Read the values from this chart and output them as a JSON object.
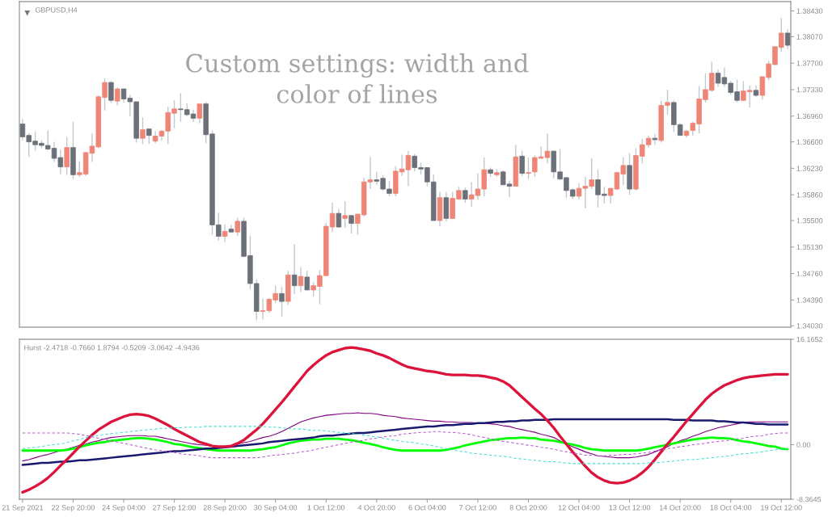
{
  "chart_data": [
    {
      "type": "candlestick",
      "title": "GBPUSD,H4",
      "annotations": [
        "Custom settings: width and\ncolor of lines"
      ],
      "categories": [
        null,
        null,
        null,
        null,
        null,
        null,
        null,
        null,
        null,
        null,
        null,
        null,
        null,
        null,
        null,
        null,
        null,
        null,
        null,
        null,
        null,
        null,
        null,
        null,
        null,
        null,
        null,
        null,
        null,
        null,
        null,
        null,
        null,
        null,
        null,
        null,
        null,
        null,
        null,
        null,
        null,
        null,
        null,
        null,
        null,
        null,
        null,
        null,
        null,
        null,
        null,
        null,
        null,
        null,
        null,
        null,
        null,
        null,
        null,
        null,
        null,
        null,
        null,
        null,
        null,
        null,
        null,
        null,
        null,
        null,
        null,
        null,
        null,
        null,
        null,
        null,
        null,
        null,
        null,
        null,
        null,
        null,
        null,
        null,
        null,
        null,
        null,
        null,
        null,
        null,
        null,
        null,
        null,
        null,
        null,
        null,
        null,
        null,
        null,
        null,
        null,
        null,
        null,
        null,
        null,
        null,
        null,
        null,
        null,
        null,
        null,
        null,
        null,
        null,
        null,
        null,
        null,
        null,
        null,
        null,
        null,
        null
      ],
      "ohlc": [
        [
          1.3685,
          1.3692,
          1.3662,
          1.3667
        ],
        [
          1.3669,
          1.3672,
          1.3639,
          1.366
        ],
        [
          1.3661,
          1.3674,
          1.3648,
          1.3656
        ],
        [
          1.3658,
          1.3662,
          1.3651,
          1.3655
        ],
        [
          1.3655,
          1.3676,
          1.3648,
          1.365
        ],
        [
          1.3651,
          1.366,
          1.3632,
          1.3637
        ],
        [
          1.3638,
          1.3649,
          1.3615,
          1.3625
        ],
        [
          1.3625,
          1.3667,
          1.3614,
          1.3652
        ],
        [
          1.3652,
          1.3688,
          1.3608,
          1.3614
        ],
        [
          1.3614,
          1.3633,
          1.3611,
          1.3617
        ],
        [
          1.3615,
          1.3646,
          1.3612,
          1.3645
        ],
        [
          1.3644,
          1.3672,
          1.3632,
          1.3654
        ],
        [
          1.3653,
          1.3725,
          1.3651,
          1.3723
        ],
        [
          1.3722,
          1.3749,
          1.3704,
          1.3743
        ],
        [
          1.3743,
          1.3745,
          1.3715,
          1.3718
        ],
        [
          1.3717,
          1.3736,
          1.3711,
          1.3734
        ],
        [
          1.3734,
          1.3734,
          1.3715,
          1.372
        ],
        [
          1.3721,
          1.3726,
          1.3696,
          1.3716
        ],
        [
          1.3716,
          1.3716,
          1.3659,
          1.3665
        ],
        [
          1.3665,
          1.3694,
          1.3657,
          1.3677
        ],
        [
          1.3678,
          1.3678,
          1.3657,
          1.3669
        ],
        [
          1.3661,
          1.3675,
          1.3658,
          1.3668
        ],
        [
          1.3668,
          1.3677,
          1.3662,
          1.3675
        ],
        [
          1.3675,
          1.3709,
          1.3657,
          1.3701
        ],
        [
          1.37,
          1.3718,
          1.3679,
          1.3706
        ],
        [
          1.3706,
          1.3728,
          1.3688,
          1.3705
        ],
        [
          1.3705,
          1.3714,
          1.3696,
          1.3698
        ],
        [
          1.3699,
          1.3705,
          1.3688,
          1.3693
        ],
        [
          1.3693,
          1.3713,
          1.3686,
          1.3713
        ],
        [
          1.3713,
          1.3716,
          1.3658,
          1.367
        ],
        [
          1.3671,
          1.3676,
          1.353,
          1.3544
        ],
        [
          1.3544,
          1.3561,
          1.3522,
          1.3528
        ],
        [
          1.3528,
          1.3545,
          1.352,
          1.3535
        ],
        [
          1.3538,
          1.3544,
          1.3533,
          1.3534
        ],
        [
          1.3534,
          1.3554,
          1.3528,
          1.3549
        ],
        [
          1.3549,
          1.3554,
          1.3499,
          1.35
        ],
        [
          1.3501,
          1.3529,
          1.3454,
          1.3462
        ],
        [
          1.3462,
          1.3468,
          1.3411,
          1.3423
        ],
        [
          1.3423,
          1.3441,
          1.3412,
          1.3424
        ],
        [
          1.3424,
          1.3442,
          1.3421,
          1.344
        ],
        [
          1.3439,
          1.3459,
          1.3435,
          1.3448
        ],
        [
          1.3448,
          1.3457,
          1.3416,
          1.3437
        ],
        [
          1.3437,
          1.348,
          1.3432,
          1.3474
        ],
        [
          1.3474,
          1.3517,
          1.3447,
          1.3459
        ],
        [
          1.3459,
          1.3485,
          1.345,
          1.3472
        ],
        [
          1.3471,
          1.348,
          1.3453,
          1.3453
        ],
        [
          1.3453,
          1.3464,
          1.3444,
          1.3459
        ],
        [
          1.3458,
          1.3481,
          1.3433,
          1.3473
        ],
        [
          1.3473,
          1.3547,
          1.3473,
          1.3542
        ],
        [
          1.3541,
          1.3575,
          1.3534,
          1.356
        ],
        [
          1.356,
          1.3566,
          1.354,
          1.3541
        ],
        [
          1.3553,
          1.3577,
          1.354,
          1.3557
        ],
        [
          1.3557,
          1.3557,
          1.3532,
          1.3546
        ],
        [
          1.3546,
          1.3559,
          1.353,
          1.3559
        ],
        [
          1.3558,
          1.361,
          1.3556,
          1.3604
        ],
        [
          1.3604,
          1.3639,
          1.3594,
          1.3607
        ],
        [
          1.3607,
          1.3618,
          1.36,
          1.3605
        ],
        [
          1.3609,
          1.3613,
          1.3592,
          1.3594
        ],
        [
          1.3594,
          1.3605,
          1.3584,
          1.3588
        ],
        [
          1.3588,
          1.3626,
          1.3584,
          1.3619
        ],
        [
          1.3618,
          1.3642,
          1.3612,
          1.3622
        ],
        [
          1.3621,
          1.3647,
          1.3598,
          1.3641
        ],
        [
          1.364,
          1.3643,
          1.3619,
          1.3624
        ],
        [
          1.3624,
          1.3631,
          1.3614,
          1.3622
        ],
        [
          1.3624,
          1.3624,
          1.3598,
          1.3604
        ],
        [
          1.3604,
          1.3614,
          1.355,
          1.355
        ],
        [
          1.355,
          1.359,
          1.3542,
          1.3582
        ],
        [
          1.3582,
          1.359,
          1.3549,
          1.3553
        ],
        [
          1.3553,
          1.359,
          1.3553,
          1.3581
        ],
        [
          1.358,
          1.3597,
          1.3579,
          1.3592
        ],
        [
          1.3592,
          1.3596,
          1.3575,
          1.358
        ],
        [
          1.358,
          1.3604,
          1.3569,
          1.3586
        ],
        [
          1.3585,
          1.3616,
          1.3579,
          1.3594
        ],
        [
          1.3594,
          1.3638,
          1.3584,
          1.3621
        ],
        [
          1.3621,
          1.3624,
          1.3611,
          1.3616
        ],
        [
          1.3614,
          1.3622,
          1.3611,
          1.3617
        ],
        [
          1.3618,
          1.362,
          1.36,
          1.36
        ],
        [
          1.3601,
          1.3606,
          1.3583,
          1.3598
        ],
        [
          1.3598,
          1.3656,
          1.3598,
          1.3639
        ],
        [
          1.364,
          1.3647,
          1.3612,
          1.3616
        ],
        [
          1.3616,
          1.3638,
          1.3608,
          1.3617
        ],
        [
          1.3618,
          1.3641,
          1.3611,
          1.3638
        ],
        [
          1.3637,
          1.3654,
          1.3637,
          1.3639
        ],
        [
          1.3638,
          1.3672,
          1.363,
          1.3647
        ],
        [
          1.3647,
          1.3648,
          1.3609,
          1.3618
        ],
        [
          1.3618,
          1.365,
          1.3607,
          1.3608
        ],
        [
          1.361,
          1.361,
          1.3582,
          1.3592
        ],
        [
          1.3593,
          1.3595,
          1.358,
          1.3584
        ],
        [
          1.3584,
          1.3602,
          1.3579,
          1.3595
        ],
        [
          1.3595,
          1.3611,
          1.3567,
          1.3598
        ],
        [
          1.3598,
          1.3637,
          1.3594,
          1.3607
        ],
        [
          1.3607,
          1.3621,
          1.3568,
          1.3586
        ],
        [
          1.3587,
          1.3597,
          1.3574,
          1.3585
        ],
        [
          1.3585,
          1.3595,
          1.3574,
          1.3595
        ],
        [
          1.3594,
          1.3618,
          1.3593,
          1.3617
        ],
        [
          1.3615,
          1.3638,
          1.36,
          1.3627
        ],
        [
          1.3627,
          1.3644,
          1.3586,
          1.3594
        ],
        [
          1.3594,
          1.3651,
          1.3592,
          1.3641
        ],
        [
          1.364,
          1.3664,
          1.363,
          1.3656
        ],
        [
          1.3656,
          1.3669,
          1.3652,
          1.3665
        ],
        [
          1.3665,
          1.3671,
          1.3656,
          1.3663
        ],
        [
          1.3662,
          1.3717,
          1.3659,
          1.3711
        ],
        [
          1.3711,
          1.3733,
          1.3698,
          1.3715
        ],
        [
          1.3715,
          1.3718,
          1.3674,
          1.3684
        ],
        [
          1.3684,
          1.3686,
          1.3669,
          1.3669
        ],
        [
          1.3669,
          1.3677,
          1.3666,
          1.3675
        ],
        [
          1.3676,
          1.3688,
          1.3669,
          1.3686
        ],
        [
          1.3685,
          1.3738,
          1.3672,
          1.372
        ],
        [
          1.3719,
          1.3756,
          1.3715,
          1.3733
        ],
        [
          1.3732,
          1.3772,
          1.373,
          1.3756
        ],
        [
          1.3756,
          1.3761,
          1.3737,
          1.3742
        ],
        [
          1.375,
          1.3764,
          1.3737,
          1.3741
        ],
        [
          1.3742,
          1.3745,
          1.3726,
          1.3729
        ],
        [
          1.373,
          1.3747,
          1.3715,
          1.3718
        ],
        [
          1.3718,
          1.3745,
          1.3717,
          1.3731
        ],
        [
          1.373,
          1.3739,
          1.3708,
          1.3732
        ],
        [
          1.3732,
          1.3739,
          1.3723,
          1.3725
        ],
        [
          1.3725,
          1.3751,
          1.3719,
          1.3751
        ],
        [
          1.375,
          1.3773,
          1.3746,
          1.3769
        ],
        [
          1.3768,
          1.3793,
          1.3767,
          1.3793
        ],
        [
          1.3792,
          1.3833,
          1.3786,
          1.3812
        ],
        [
          1.3812,
          1.3817,
          1.379,
          1.3795
        ]
      ],
      "colors": [
        "#6c7079",
        "#6c7079",
        "#6c7079",
        "#6c7079",
        "#6c7079",
        "#6c7079",
        "#6c7079",
        "#ee8577",
        "#6c7079",
        "#ee8577",
        "#ee8577",
        "#ee8577",
        "#ee8577",
        "#ee8577",
        "#6c7079",
        "#ee8577",
        "#6c7079",
        "#6c7079",
        "#6c7079",
        "#ee8577",
        "#6c7079",
        "#ee8577",
        "#ee8577",
        "#ee8577",
        "#ee8577",
        "#6c7079",
        "#6c7079",
        "#6c7079",
        "#ee8577",
        "#6c7079",
        "#6c7079",
        "#6c7079",
        "#ee8577",
        "#6c7079",
        "#ee8577",
        "#6c7079",
        "#6c7079",
        "#6c7079",
        "#ee8577",
        "#ee8577",
        "#ee8577",
        "#6c7079",
        "#ee8577",
        "#6c7079",
        "#ee8577",
        "#6c7079",
        "#ee8577",
        "#ee8577",
        "#ee8577",
        "#ee8577",
        "#6c7079",
        "#ee8577",
        "#6c7079",
        "#ee8577",
        "#ee8577",
        "#ee8577",
        "#6c7079",
        "#6c7079",
        "#6c7079",
        "#ee8577",
        "#ee8577",
        "#ee8577",
        "#6c7079",
        "#6c7079",
        "#6c7079",
        "#6c7079",
        "#ee8577",
        "#6c7079",
        "#ee8577",
        "#ee8577",
        "#6c7079",
        "#ee8577",
        "#ee8577",
        "#ee8577",
        "#6c7079",
        "#ee8577",
        "#6c7079",
        "#6c7079",
        "#ee8577",
        "#6c7079",
        "#ee8577",
        "#ee8577",
        "#ee8577",
        "#ee8577",
        "#6c7079",
        "#6c7079",
        "#6c7079",
        "#6c7079",
        "#ee8577",
        "#ee8577",
        "#ee8577",
        "#6c7079",
        "#6c7079",
        "#ee8577",
        "#ee8577",
        "#ee8577",
        "#6c7079",
        "#ee8577",
        "#ee8577",
        "#ee8577",
        "#6c7079",
        "#ee8577",
        "#ee8577",
        "#6c7079",
        "#6c7079",
        "#ee8577",
        "#ee8577",
        "#ee8577",
        "#ee8577",
        "#ee8577",
        "#6c7079",
        "#6c7079",
        "#6c7079",
        "#6c7079",
        "#ee8577",
        "#ee8577",
        "#6c7079",
        "#ee8577",
        "#ee8577",
        "#ee8577",
        "#ee8577",
        "#6c7079"
      ],
      "ylim": [
        1.3401,
        1.3856
      ],
      "yticks": [
        {
          "value": 1.3843,
          "label": "1.38430"
        },
        {
          "value": 1.3807,
          "label": "1.38070"
        },
        {
          "value": 1.377,
          "label": "1.37700"
        },
        {
          "value": 1.3733,
          "label": "1.37330"
        },
        {
          "value": 1.3696,
          "label": "1.36960"
        },
        {
          "value": 1.366,
          "label": "1.36600"
        },
        {
          "value": 1.3623,
          "label": "1.36230"
        },
        {
          "value": 1.3586,
          "label": "1.35860"
        },
        {
          "value": 1.355,
          "label": "1.35500"
        },
        {
          "value": 1.3513,
          "label": "1.35130"
        },
        {
          "value": 1.3476,
          "label": "1.34760"
        },
        {
          "value": 1.3439,
          "label": "1.34390"
        },
        {
          "value": 1.3403,
          "label": "1.34030"
        }
      ],
      "tick_labels": "y"
    },
    {
      "type": "line",
      "title": "Hurst -2.4718 -0.7660 1.8794 -0.5209 -3.0642 -4.9436",
      "categories": [
        "21 Sep 2021",
        null,
        null,
        null,
        null,
        null,
        null,
        null,
        "22 Sep 20:00",
        null,
        null,
        null,
        null,
        null,
        null,
        null,
        "24 Sep 04:00",
        null,
        null,
        null,
        null,
        null,
        null,
        null,
        "27 Sep 12:00",
        null,
        null,
        null,
        null,
        null,
        null,
        null,
        "28 Sep 20:00",
        null,
        null,
        null,
        null,
        null,
        null,
        null,
        "30 Sep 04:00",
        null,
        null,
        null,
        null,
        null,
        null,
        null,
        "1 Oct 12:00",
        null,
        null,
        null,
        null,
        null,
        null,
        null,
        "4 Oct 20:00",
        null,
        null,
        null,
        null,
        null,
        null,
        null,
        "6 Oct 04:00",
        null,
        null,
        null,
        null,
        null,
        null,
        null,
        "7 Oct 12:00",
        null,
        null,
        null,
        null,
        null,
        null,
        null,
        "8 Oct 20:00",
        null,
        null,
        null,
        null,
        null,
        null,
        null,
        "12 Oct 04:00",
        null,
        null,
        null,
        null,
        null,
        null,
        null,
        "13 Oct 12:00",
        null,
        null,
        null,
        null,
        null,
        null,
        null,
        "14 Oct 20:00",
        null,
        null,
        null,
        null,
        null,
        null,
        null,
        "18 Oct 04:00",
        null,
        null,
        null,
        null,
        null,
        null,
        null,
        "19 Oct 12:00",
        null
      ],
      "series": [
        {
          "color": "#dc143c",
          "values": [
            -7.3,
            -6.9,
            -6.4,
            -5.8,
            -5.1,
            -4.2,
            -3.2,
            -2.3,
            -1.3,
            -0.3,
            0.6,
            1.5,
            2.3,
            2.9,
            3.5,
            3.9,
            4.3,
            4.6,
            4.7,
            4.6,
            4.4,
            4.0,
            3.5,
            3.0,
            2.4,
            1.9,
            1.4,
            0.9,
            0.4,
            0.1,
            -0.2,
            -0.3,
            -0.3,
            -0.2,
            0.2,
            0.7,
            1.5,
            2.3,
            3.2,
            4.3,
            5.4,
            6.5,
            7.7,
            8.9,
            10.1,
            11.3,
            12.2,
            13.0,
            13.7,
            14.2,
            14.5,
            14.8,
            14.9,
            14.8,
            14.6,
            14.4,
            14.0,
            13.7,
            13.3,
            12.8,
            12.3,
            11.9,
            11.7,
            11.5,
            11.3,
            11.2,
            11.0,
            10.8,
            10.7,
            10.7,
            10.7,
            10.6,
            10.6,
            10.5,
            10.3,
            10.1,
            9.7,
            9.1,
            8.2,
            7.3,
            6.4,
            5.5,
            4.7,
            3.7,
            2.6,
            1.3,
            0.1,
            -1.1,
            -2.2,
            -3.3,
            -4.3,
            -5.0,
            -5.5,
            -5.8,
            -5.9,
            -5.8,
            -5.5,
            -5.0,
            -4.3,
            -3.4,
            -2.3,
            -1.1,
            0.1,
            1.2,
            2.4,
            3.6,
            4.7,
            5.8,
            6.9,
            7.8,
            8.5,
            9.1,
            9.5,
            9.9,
            10.2,
            10.4,
            10.5,
            10.6,
            10.7,
            10.8,
            10.8,
            10.8
          ]
        },
        {
          "color": "#191970",
          "values": [
            -3.1,
            -3.0,
            -2.9,
            -2.8,
            -2.8,
            -2.7,
            -2.6,
            -2.6,
            -2.5,
            -2.4,
            -2.4,
            -2.3,
            -2.2,
            -2.1,
            -2.0,
            -1.9,
            -1.8,
            -1.7,
            -1.6,
            -1.5,
            -1.4,
            -1.3,
            -1.2,
            -1.1,
            -1.0,
            -1.0,
            -0.9,
            -0.8,
            -0.7,
            -0.6,
            -0.6,
            -0.5,
            -0.4,
            -0.3,
            -0.2,
            -0.1,
            0.0,
            0.1,
            0.2,
            0.4,
            0.5,
            0.6,
            0.7,
            0.8,
            0.9,
            1.0,
            1.1,
            1.3,
            1.4,
            1.4,
            1.5,
            1.6,
            1.7,
            1.8,
            1.8,
            1.9,
            2.0,
            2.1,
            2.2,
            2.3,
            2.4,
            2.5,
            2.6,
            2.7,
            2.8,
            2.8,
            2.9,
            3.0,
            3.0,
            3.1,
            3.2,
            3.2,
            3.3,
            3.3,
            3.4,
            3.5,
            3.5,
            3.6,
            3.6,
            3.7,
            3.7,
            3.8,
            3.8,
            3.8,
            3.9,
            3.9,
            3.9,
            3.9,
            3.9,
            3.9,
            3.9,
            3.9,
            3.9,
            3.9,
            3.9,
            3.9,
            3.9,
            3.9,
            3.9,
            3.9,
            3.9,
            3.9,
            3.9,
            3.8,
            3.8,
            3.8,
            3.7,
            3.7,
            3.7,
            3.7,
            3.6,
            3.6,
            3.5,
            3.4,
            3.4,
            3.3,
            3.2,
            3.2,
            3.1,
            3.1,
            3.1,
            3.1
          ]
        },
        {
          "color": "#00ff00",
          "values": [
            -0.9,
            -0.9,
            -0.9,
            -0.9,
            -0.9,
            -0.9,
            -0.9,
            -0.8,
            -0.6,
            -0.4,
            -0.1,
            0.1,
            0.3,
            0.4,
            0.6,
            0.7,
            0.8,
            0.9,
            1.0,
            1.0,
            0.9,
            0.8,
            0.6,
            0.4,
            0.1,
            0.0,
            -0.2,
            -0.4,
            -0.5,
            -0.7,
            -0.8,
            -0.9,
            -0.9,
            -0.9,
            -0.9,
            -0.9,
            -0.9,
            -0.8,
            -0.7,
            -0.5,
            -0.4,
            -0.1,
            0.2,
            0.4,
            0.6,
            0.7,
            0.8,
            0.8,
            0.9,
            0.9,
            0.9,
            0.8,
            0.7,
            0.5,
            0.3,
            0.1,
            -0.1,
            -0.4,
            -0.6,
            -0.8,
            -0.9,
            -0.9,
            -0.9,
            -0.9,
            -0.9,
            -0.9,
            -0.9,
            -0.8,
            -0.6,
            -0.4,
            -0.1,
            0.1,
            0.3,
            0.5,
            0.7,
            0.8,
            0.9,
            1.0,
            1.0,
            1.1,
            1.0,
            1.0,
            0.8,
            0.7,
            0.6,
            0.4,
            0.2,
            0.0,
            -0.2,
            -0.5,
            -0.7,
            -0.8,
            -0.9,
            -0.9,
            -0.9,
            -0.9,
            -0.9,
            -0.9,
            -0.8,
            -0.6,
            -0.4,
            -0.2,
            0.0,
            0.2,
            0.4,
            0.6,
            0.8,
            0.9,
            1.0,
            1.1,
            1.0,
            1.0,
            0.9,
            0.7,
            0.5,
            0.4,
            0.2,
            0.0,
            -0.2,
            -0.3,
            -0.6,
            -0.7
          ]
        },
        {
          "color": "#800080",
          "values": [
            -2.5,
            -2.3,
            -2.0,
            -1.7,
            -1.5,
            -1.2,
            -0.9,
            -0.7,
            -0.4,
            -0.1,
            0.1,
            0.4,
            0.6,
            0.9,
            1.1,
            1.2,
            1.3,
            1.4,
            1.4,
            1.4,
            1.3,
            1.3,
            1.1,
            0.9,
            0.7,
            0.5,
            0.3,
            0.1,
            0.0,
            -0.1,
            -0.2,
            -0.3,
            -0.3,
            -0.1,
            0.1,
            0.3,
            0.5,
            0.8,
            1.1,
            1.3,
            1.6,
            2.0,
            2.5,
            3.0,
            3.5,
            3.8,
            4.1,
            4.3,
            4.5,
            4.6,
            4.7,
            4.8,
            4.8,
            4.9,
            4.8,
            4.8,
            4.7,
            4.5,
            4.4,
            4.3,
            4.1,
            4.0,
            3.9,
            3.8,
            3.7,
            3.6,
            3.6,
            3.5,
            3.5,
            3.4,
            3.4,
            3.4,
            3.3,
            3.3,
            3.2,
            3.1,
            2.9,
            2.8,
            2.5,
            2.3,
            2.1,
            1.9,
            1.6,
            1.4,
            1.1,
            0.6,
            0.1,
            -0.3,
            -0.7,
            -1.1,
            -1.4,
            -1.7,
            -1.8,
            -1.9,
            -2.0,
            -2.0,
            -2.0,
            -1.9,
            -1.7,
            -1.5,
            -1.1,
            -0.7,
            -0.3,
            0.2,
            0.6,
            0.9,
            1.3,
            1.6,
            2.0,
            2.3,
            2.6,
            2.8,
            3.0,
            3.2,
            3.4,
            3.5,
            3.5,
            3.5,
            3.5,
            3.5,
            3.5,
            3.5
          ]
        },
        {
          "color": "#ba55d3",
          "line_style": "dashed",
          "values": [
            1.8,
            1.8,
            1.8,
            1.8,
            1.8,
            1.8,
            1.8,
            1.8,
            1.7,
            1.6,
            1.4,
            1.2,
            1.0,
            0.8,
            0.6,
            0.4,
            0.2,
            0.0,
            -0.2,
            -0.4,
            -0.6,
            -0.8,
            -0.9,
            -1.1,
            -1.2,
            -1.4,
            -1.5,
            -1.6,
            -1.7,
            -1.9,
            -2.0,
            -2.0,
            -2.0,
            -2.0,
            -2.0,
            -2.0,
            -2.0,
            -2.0,
            -1.9,
            -1.7,
            -1.6,
            -1.5,
            -1.4,
            -1.3,
            -1.1,
            -1.0,
            -0.8,
            -0.6,
            -0.4,
            -0.2,
            0.0,
            0.2,
            0.4,
            0.5,
            0.7,
            0.9,
            1.0,
            1.2,
            1.3,
            1.4,
            1.6,
            1.7,
            1.8,
            1.9,
            1.9,
            2.0,
            2.0,
            1.9,
            1.9,
            1.8,
            1.7,
            1.5,
            1.3,
            1.1,
            0.9,
            0.7,
            0.5,
            0.4,
            0.2,
            0.1,
            -0.1,
            -0.2,
            -0.4,
            -0.5,
            -0.7,
            -0.9,
            -1.1,
            -1.3,
            -1.4,
            -1.6,
            -1.6,
            -1.7,
            -1.7,
            -1.6,
            -1.6,
            -1.5,
            -1.5,
            -1.4,
            -1.3,
            -1.2,
            -1.0,
            -0.8,
            -0.6,
            -0.5,
            -0.3,
            -0.2,
            0.0,
            0.1,
            0.2,
            0.4,
            0.5,
            0.6,
            0.7,
            0.9,
            1.0,
            1.2,
            1.3,
            1.4,
            1.6,
            1.7,
            1.8,
            1.8
          ]
        },
        {
          "color": "#40e0d0",
          "line_style": "dashed",
          "values": [
            -0.6,
            -0.5,
            -0.4,
            -0.3,
            -0.1,
            0.0,
            0.1,
            0.3,
            0.6,
            0.8,
            1.1,
            1.3,
            1.4,
            1.6,
            1.7,
            1.8,
            1.9,
            2.0,
            2.1,
            2.2,
            2.3,
            2.4,
            2.5,
            2.5,
            2.6,
            2.6,
            2.7,
            2.7,
            2.7,
            2.8,
            2.8,
            2.8,
            2.8,
            2.8,
            2.8,
            2.8,
            2.8,
            2.8,
            2.8,
            2.7,
            2.7,
            2.6,
            2.5,
            2.4,
            2.4,
            2.3,
            2.2,
            2.2,
            2.1,
            2.0,
            1.9,
            1.8,
            1.7,
            1.6,
            1.5,
            1.3,
            1.2,
            1.0,
            0.8,
            0.7,
            0.5,
            0.4,
            0.3,
            0.1,
            0.0,
            -0.2,
            -0.4,
            -0.6,
            -0.8,
            -1.0,
            -1.1,
            -1.3,
            -1.4,
            -1.5,
            -1.6,
            -1.7,
            -1.8,
            -1.9,
            -2.1,
            -2.2,
            -2.3,
            -2.4,
            -2.5,
            -2.6,
            -2.6,
            -2.7,
            -2.8,
            -2.9,
            -2.9,
            -2.9,
            -2.9,
            -2.9,
            -2.9,
            -2.9,
            -2.9,
            -2.9,
            -2.9,
            -2.9,
            -2.9,
            -2.8,
            -2.8,
            -2.7,
            -2.6,
            -2.5,
            -2.4,
            -2.3,
            -2.3,
            -2.2,
            -2.1,
            -2.0,
            -1.9,
            -1.8,
            -1.7,
            -1.5,
            -1.4,
            -1.3,
            -1.2,
            -1.1,
            -0.9,
            -0.8,
            -0.7,
            -0.6
          ]
        }
      ],
      "ylim": [
        -8.3645,
        16.1652
      ],
      "yticks": [
        16.1652,
        {
          "value": 0,
          "label": "0.00"
        },
        -8.3645
      ]
    }
  ]
}
